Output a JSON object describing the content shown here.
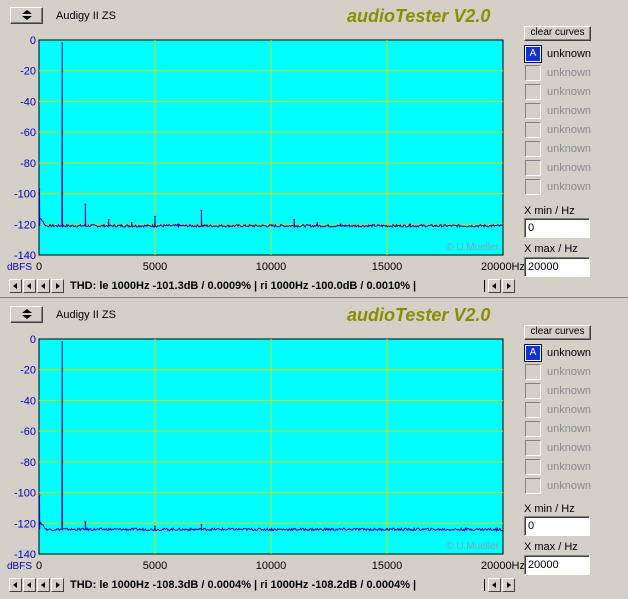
{
  "panels": [
    {
      "device": "Audigy II ZS",
      "app_title": "audioTester V2.0",
      "clear_curves_label": "clear curves",
      "curves": [
        {
          "letter": "A",
          "label": "unknown",
          "active": true
        },
        {
          "letter": "",
          "label": "unknown",
          "active": false
        },
        {
          "letter": "",
          "label": "unknown",
          "active": false
        },
        {
          "letter": "",
          "label": "unknown",
          "active": false
        },
        {
          "letter": "",
          "label": "unknown",
          "active": false
        },
        {
          "letter": "",
          "label": "unknown",
          "active": false
        },
        {
          "letter": "",
          "label": "unknown",
          "active": false
        },
        {
          "letter": "",
          "label": "unknown",
          "active": false
        }
      ],
      "xmin_label": "X min / Hz",
      "xmin_value": "0",
      "xmax_label": "X max / Hz",
      "xmax_value": "20000",
      "thd_text": "THD: le 1000Hz -101.3dB / 0.0009% | ri 1000Hz -100.0dB / 0.0010% |",
      "chart_data": {
        "type": "line",
        "ylabel": "dBFS",
        "xunit": "Hz",
        "watermark": "© U.Mueller",
        "xlim": [
          0,
          20000
        ],
        "ylim": [
          -140,
          0
        ],
        "xticks": [
          "0",
          "5000",
          "10000",
          "15000",
          "20000Hz"
        ],
        "yticks": [
          "0",
          "-20",
          "-40",
          "-60",
          "-80",
          "-100",
          "-120",
          "-140"
        ],
        "grid": true,
        "noise_floor": -121,
        "series": [
          {
            "peaks": [
              {
                "x": 20,
                "y": -97
              },
              {
                "x": 1000,
                "y": -2
              },
              {
                "x": 2000,
                "y": -107
              },
              {
                "x": 3000,
                "y": -117
              },
              {
                "x": 4000,
                "y": -119
              },
              {
                "x": 5000,
                "y": -115
              },
              {
                "x": 6000,
                "y": -120
              },
              {
                "x": 7000,
                "y": -111
              },
              {
                "x": 11000,
                "y": -117
              },
              {
                "x": 12000,
                "y": -119
              },
              {
                "x": 13000,
                "y": -120
              },
              {
                "x": 16000,
                "y": -120
              }
            ]
          }
        ]
      }
    },
    {
      "device": "Audigy II ZS",
      "app_title": "audioTester V2.0",
      "clear_curves_label": "clear curves",
      "curves": [
        {
          "letter": "A",
          "label": "unknown",
          "active": true
        },
        {
          "letter": "",
          "label": "unknown",
          "active": false
        },
        {
          "letter": "",
          "label": "unknown",
          "active": false
        },
        {
          "letter": "",
          "label": "unknown",
          "active": false
        },
        {
          "letter": "",
          "label": "unknown",
          "active": false
        },
        {
          "letter": "",
          "label": "unknown",
          "active": false
        },
        {
          "letter": "",
          "label": "unknown",
          "active": false
        },
        {
          "letter": "",
          "label": "unknown",
          "active": false
        }
      ],
      "xmin_label": "X min / Hz",
      "xmin_value": "0",
      "xmax_label": "X max / Hz",
      "xmax_value": "20000",
      "thd_text": "THD: le 1000Hz -108.3dB / 0.0004% | ri 1000Hz -108.2dB / 0.0004% |",
      "chart_data": {
        "type": "line",
        "ylabel": "dBFS",
        "xunit": "Hz",
        "watermark": "© U.Mueller",
        "xlim": [
          0,
          20000
        ],
        "ylim": [
          -140,
          0
        ],
        "xticks": [
          "0",
          "5000",
          "10000",
          "15000",
          "20000Hz"
        ],
        "yticks": [
          "0",
          "-20",
          "-40",
          "-60",
          "-80",
          "-100",
          "-120",
          "-140"
        ],
        "grid": true,
        "noise_floor": -124,
        "series": [
          {
            "peaks": [
              {
                "x": 20,
                "y": -102
              },
              {
                "x": 1000,
                "y": -2
              },
              {
                "x": 2000,
                "y": -119
              },
              {
                "x": 5000,
                "y": -122
              },
              {
                "x": 7000,
                "y": -121
              }
            ]
          }
        ]
      }
    }
  ]
}
